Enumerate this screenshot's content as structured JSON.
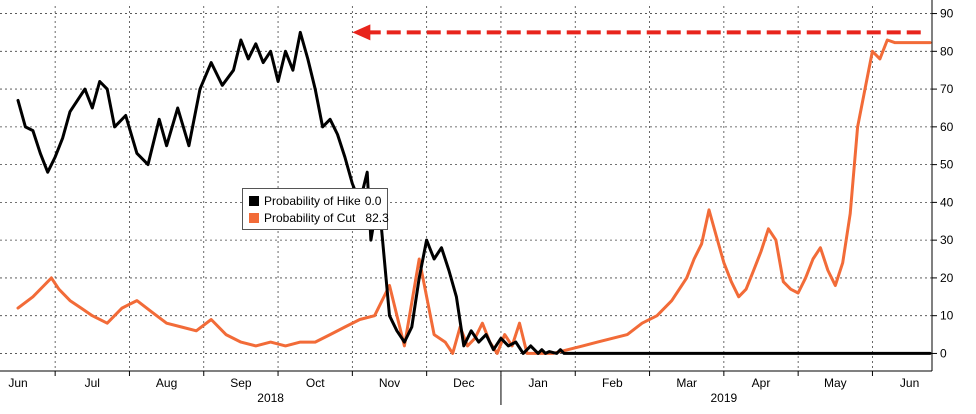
{
  "chart_data": {
    "type": "line",
    "xaxis": {
      "months": [
        "Jun",
        "Jul",
        "Aug",
        "Sep",
        "Oct",
        "Nov",
        "Dec",
        "Jan",
        "Feb",
        "Mar",
        "Apr",
        "May",
        "Jun"
      ],
      "years": [
        "2018",
        "2019"
      ]
    },
    "yaxis": {
      "ticks": [
        0,
        10,
        20,
        30,
        40,
        50,
        60,
        70,
        80,
        90
      ],
      "ylim": [
        -2,
        92
      ],
      "side": "right"
    },
    "grid": true,
    "legend": {
      "placement": "center-left",
      "entries": [
        {
          "label": "Probability of Hike",
          "value": "0.0",
          "color": "#000000"
        },
        {
          "label": "Probability of Cut",
          "value": "82.3",
          "color": "#f26b38"
        }
      ]
    },
    "series": [
      {
        "name": "Probability of Hike",
        "color": "#000000",
        "x": [
          0.0,
          0.1,
          0.2,
          0.3,
          0.4,
          0.5,
          0.6,
          0.7,
          0.8,
          0.9,
          1.0,
          1.1,
          1.2,
          1.3,
          1.45,
          1.6,
          1.75,
          1.9,
          2.0,
          2.15,
          2.3,
          2.45,
          2.6,
          2.75,
          2.9,
          3.0,
          3.1,
          3.2,
          3.3,
          3.4,
          3.5,
          3.6,
          3.7,
          3.8,
          3.9,
          4.0,
          4.1,
          4.2,
          4.3,
          4.4,
          4.5,
          4.6,
          4.7,
          4.75,
          4.85,
          5.0,
          5.1,
          5.2,
          5.3,
          5.4,
          5.5,
          5.6,
          5.7,
          5.8,
          5.9,
          6.0,
          6.1,
          6.2,
          6.3,
          6.4,
          6.5,
          6.6,
          6.7,
          6.8,
          6.9,
          7.0,
          7.05,
          7.1,
          7.15,
          7.25,
          7.3,
          7.35,
          7.4,
          7.5,
          7.6,
          7.7,
          7.8,
          7.9,
          8.0,
          8.1,
          8.2,
          8.3,
          8.4,
          8.5,
          8.6,
          8.7,
          8.8,
          8.9,
          9.0,
          9.2,
          9.4,
          9.6,
          10.0,
          10.5,
          11.0,
          11.5,
          12.0,
          12.3
        ],
        "values": [
          67,
          60,
          59,
          53,
          48,
          52,
          57,
          64,
          67,
          70,
          65,
          72,
          70,
          60,
          63,
          53,
          50,
          62,
          55,
          65,
          55,
          70,
          77,
          71,
          75,
          83,
          78,
          82,
          77,
          80,
          72,
          80,
          75,
          85,
          78,
          70,
          60,
          62,
          58,
          52,
          45,
          40,
          48,
          30,
          42,
          10,
          6,
          3,
          7,
          20,
          30,
          25,
          28,
          22,
          15,
          2,
          6,
          3,
          5,
          1,
          4,
          2,
          3,
          0,
          2,
          0,
          1,
          0,
          0.5,
          0,
          1,
          0,
          0,
          0,
          0,
          0,
          0,
          0,
          0,
          0,
          0,
          0,
          0,
          0,
          0,
          0,
          0,
          0,
          0,
          0,
          0,
          0,
          0,
          0,
          0,
          0,
          0,
          0
        ]
      },
      {
        "name": "Probability of Cut",
        "color": "#f26b38",
        "x": [
          0.0,
          0.2,
          0.35,
          0.45,
          0.55,
          0.7,
          0.85,
          1.0,
          1.2,
          1.4,
          1.6,
          1.8,
          2.0,
          2.2,
          2.4,
          2.6,
          2.8,
          3.0,
          3.2,
          3.4,
          3.6,
          3.8,
          4.0,
          4.2,
          4.4,
          4.6,
          4.8,
          5.0,
          5.2,
          5.4,
          5.6,
          5.75,
          5.85,
          5.95,
          6.05,
          6.15,
          6.25,
          6.35,
          6.45,
          6.55,
          6.65,
          6.75,
          6.85,
          7.0,
          7.2,
          7.4,
          7.6,
          7.8,
          8.0,
          8.2,
          8.4,
          8.6,
          8.8,
          9.0,
          9.1,
          9.2,
          9.3,
          9.4,
          9.5,
          9.6,
          9.7,
          9.8,
          9.9,
          10.0,
          10.1,
          10.2,
          10.3,
          10.4,
          10.5,
          10.6,
          10.7,
          10.8,
          10.9,
          11.0,
          11.1,
          11.2,
          11.3,
          11.4,
          11.5,
          11.6,
          11.7,
          11.8,
          11.9,
          12.0,
          12.1,
          12.2,
          12.3
        ],
        "values": [
          12,
          15,
          18,
          20,
          17,
          14,
          12,
          10,
          8,
          12,
          14,
          11,
          8,
          7,
          6,
          9,
          5,
          3,
          2,
          3,
          2,
          3,
          3,
          5,
          7,
          9,
          10,
          18,
          2,
          25,
          5,
          3,
          0,
          7,
          2,
          4,
          8,
          3,
          0,
          5,
          2,
          8,
          0,
          0,
          0,
          1,
          2,
          3,
          4,
          5,
          8,
          10,
          14,
          20,
          25,
          29,
          38,
          31,
          24,
          19,
          15,
          17,
          22,
          27,
          33,
          30,
          19,
          17,
          16,
          20,
          25,
          28,
          22,
          18,
          24,
          37,
          60,
          70,
          80,
          78,
          83,
          82.3,
          82.3,
          82.3,
          82.3,
          82.3,
          82.3
        ]
      }
    ],
    "annotation": {
      "type": "dashed-arrow",
      "color": "#e8241c",
      "from_x": 12.15,
      "to_x": 4.5,
      "y": 85
    }
  }
}
